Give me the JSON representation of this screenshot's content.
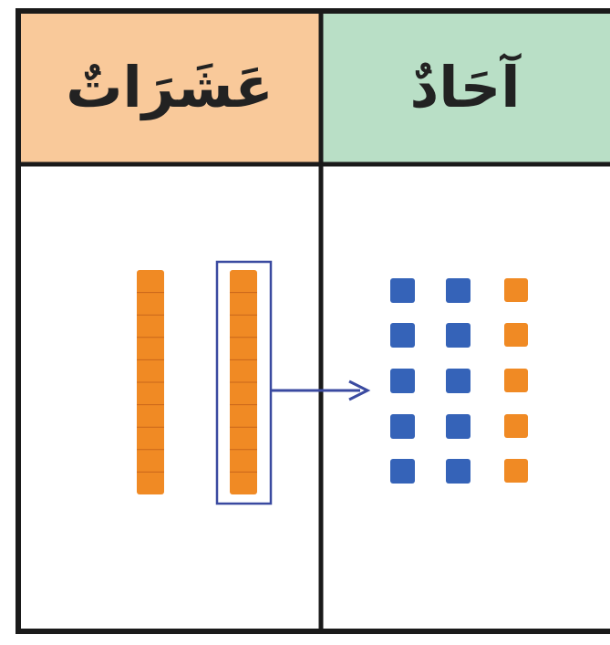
{
  "table": {
    "headers": [
      "عَشَرَاتٌ",
      "آحَادٌ"
    ]
  }
}
